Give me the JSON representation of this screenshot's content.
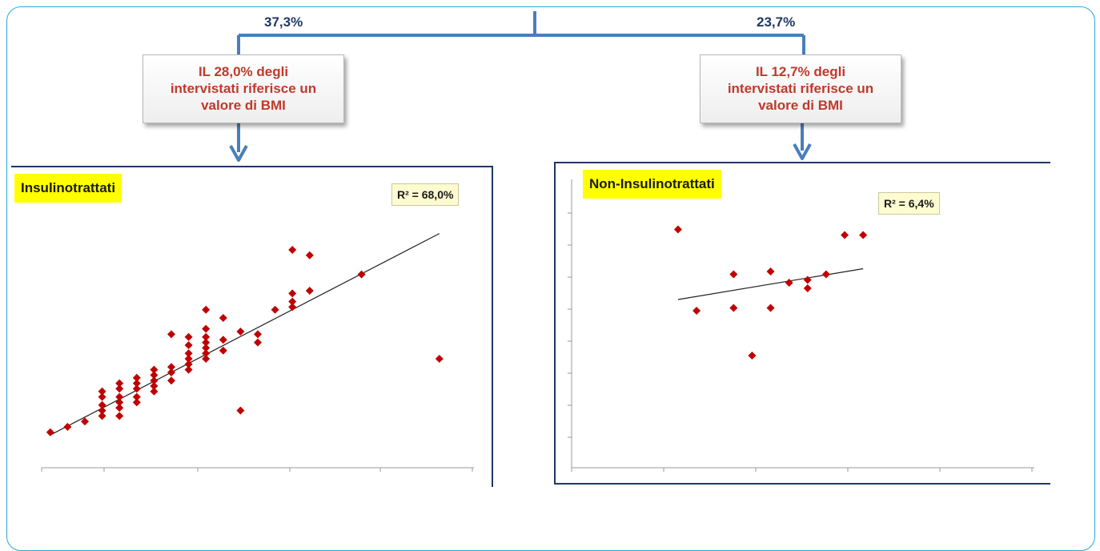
{
  "header": {
    "pct_left": "37,3%",
    "pct_right": "23,7%",
    "callout_left": [
      "IL 28,0% degli",
      "intervistati riferisce un",
      "valore di BMI"
    ],
    "callout_right": [
      "IL 12,7% degli",
      "intervistati riferisce un",
      "valore di BMI"
    ]
  },
  "colors": {
    "connector": "#4a7ebb",
    "callout_text": "#c0392b",
    "label_bg": "#ffff00",
    "point": "#c00000",
    "trend": "#222222",
    "frame": "#29a8df"
  },
  "chart_data": [
    {
      "type": "scatter",
      "title": "Insulinotrattati",
      "annotation": "R² = 68,0%",
      "xlabel": "",
      "ylabel": "",
      "xlim": [
        0,
        10
      ],
      "ylim": [
        0,
        10
      ],
      "grid": false,
      "points": [
        [
          0.2,
          1.3
        ],
        [
          0.6,
          1.5
        ],
        [
          1.0,
          1.7
        ],
        [
          1.4,
          1.9
        ],
        [
          1.4,
          2.1
        ],
        [
          1.4,
          2.3
        ],
        [
          1.4,
          2.6
        ],
        [
          1.4,
          2.8
        ],
        [
          1.8,
          1.9
        ],
        [
          1.8,
          2.2
        ],
        [
          1.8,
          2.4
        ],
        [
          1.8,
          2.6
        ],
        [
          1.8,
          2.9
        ],
        [
          1.8,
          3.1
        ],
        [
          2.2,
          2.4
        ],
        [
          2.2,
          2.6
        ],
        [
          2.2,
          2.9
        ],
        [
          2.2,
          3.1
        ],
        [
          2.2,
          3.3
        ],
        [
          2.6,
          2.8
        ],
        [
          2.6,
          3.0
        ],
        [
          2.6,
          3.2
        ],
        [
          2.6,
          3.4
        ],
        [
          2.6,
          3.6
        ],
        [
          3.0,
          3.2
        ],
        [
          3.0,
          3.5
        ],
        [
          3.0,
          3.7
        ],
        [
          3.0,
          4.9
        ],
        [
          3.4,
          3.8
        ],
        [
          3.4,
          4.0
        ],
        [
          3.4,
          4.2
        ],
        [
          3.4,
          4.5
        ],
        [
          3.4,
          4.8
        ],
        [
          3.4,
          3.6
        ],
        [
          3.8,
          4.0
        ],
        [
          3.8,
          4.2
        ],
        [
          3.8,
          4.4
        ],
        [
          3.8,
          4.6
        ],
        [
          3.8,
          4.8
        ],
        [
          3.8,
          5.1
        ],
        [
          3.8,
          5.8
        ],
        [
          4.2,
          4.3
        ],
        [
          4.2,
          4.7
        ],
        [
          4.2,
          5.5
        ],
        [
          4.6,
          5.0
        ],
        [
          4.6,
          2.1
        ],
        [
          5.0,
          4.6
        ],
        [
          5.0,
          4.9
        ],
        [
          5.4,
          5.8
        ],
        [
          5.8,
          5.9
        ],
        [
          5.8,
          6.1
        ],
        [
          5.8,
          6.4
        ],
        [
          5.8,
          8.0
        ],
        [
          6.2,
          6.5
        ],
        [
          6.2,
          7.8
        ],
        [
          7.4,
          7.1
        ],
        [
          9.2,
          4.0
        ]
      ],
      "trendline": [
        [
          0.2,
          1.2
        ],
        [
          9.2,
          8.6
        ]
      ]
    },
    {
      "type": "scatter",
      "title": "Non-Insulinotrattati",
      "annotation": "R² = 6,4%",
      "xlabel": "",
      "ylabel": "",
      "xlim": [
        0,
        10
      ],
      "ylim": [
        0,
        10
      ],
      "grid": false,
      "points": [
        [
          2.3,
          8.5
        ],
        [
          2.7,
          5.6
        ],
        [
          3.5,
          6.9
        ],
        [
          3.5,
          5.7
        ],
        [
          3.9,
          4.0
        ],
        [
          4.3,
          7.0
        ],
        [
          4.3,
          5.7
        ],
        [
          4.7,
          6.6
        ],
        [
          5.1,
          6.4
        ],
        [
          5.1,
          6.7
        ],
        [
          5.5,
          6.9
        ],
        [
          5.9,
          8.3
        ],
        [
          6.3,
          8.3
        ]
      ],
      "trendline": [
        [
          2.3,
          6.0
        ],
        [
          6.3,
          7.1
        ]
      ]
    }
  ]
}
